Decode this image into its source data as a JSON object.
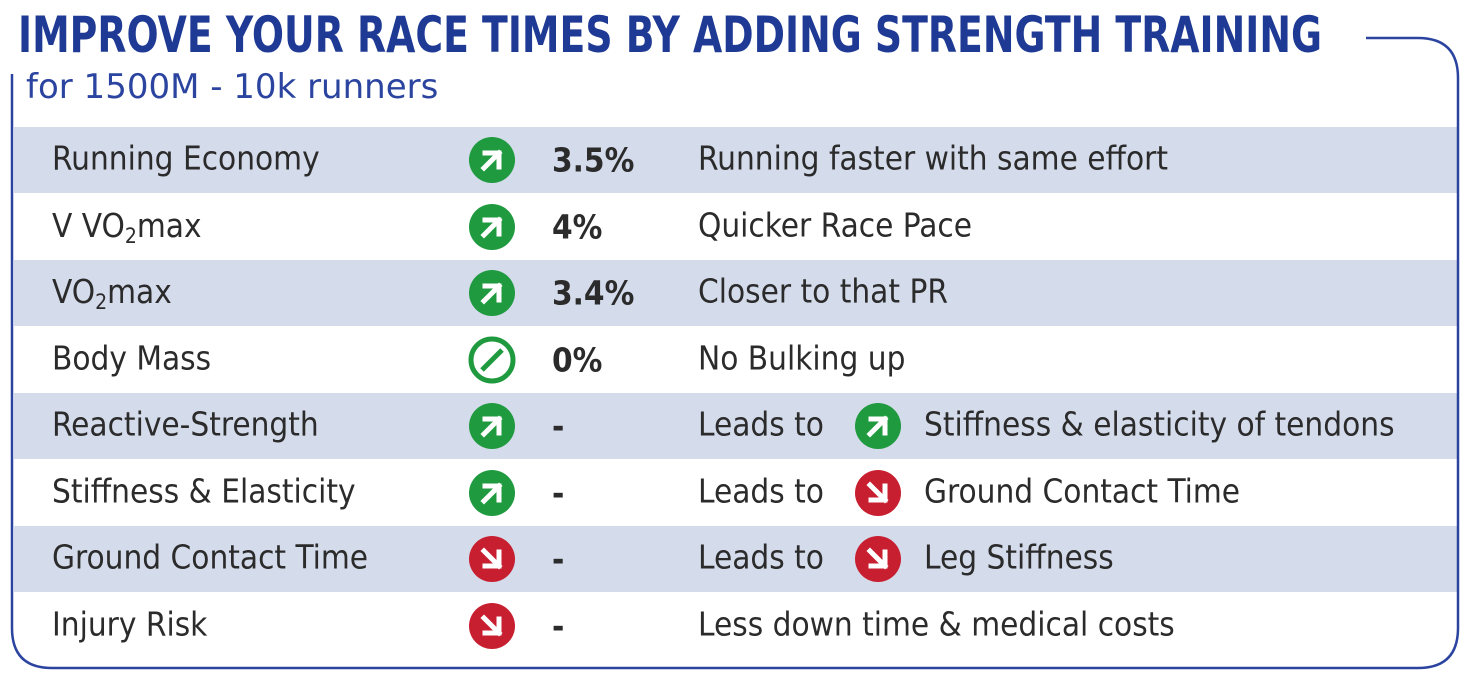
{
  "header": {
    "title": "IMPROVE YOUR RACE TIMES BY ADDING STRENGTH TRAINING",
    "subtitle": "for 1500M - 10k runners"
  },
  "table": {
    "rows": [
      {
        "label": [
          "Running Economy"
        ],
        "value": "3.5%",
        "description": [
          "Running faster with same effort"
        ]
      },
      {
        "label": [
          "V VO",
          "2",
          "max"
        ],
        "value": "4%",
        "description": [
          "Quicker Race Pace"
        ]
      },
      {
        "label": [
          "VO",
          "2",
          "max"
        ],
        "value": "3.4%",
        "description": [
          "Closer to that PR"
        ]
      },
      {
        "label": [
          "Body Mass"
        ],
        "value": "0%",
        "description": [
          "No Bulking up"
        ]
      },
      {
        "label": [
          "Reactive-Strength"
        ],
        "value": "-",
        "description": [
          "Leads to",
          "Stiffness & elasticity of tendons"
        ]
      },
      {
        "label": [
          "Stiffness & Elasticity"
        ],
        "value": "-",
        "description": [
          "Leads to",
          "Ground Contact Time"
        ]
      },
      {
        "label": [
          "Ground Contact Time"
        ],
        "value": "-",
        "description": [
          "Leads to",
          "Leg Stiffness"
        ]
      },
      {
        "label": [
          "Injury Risk"
        ],
        "value": "-",
        "description": [
          "Less down time & medical costs"
        ]
      }
    ]
  }
}
